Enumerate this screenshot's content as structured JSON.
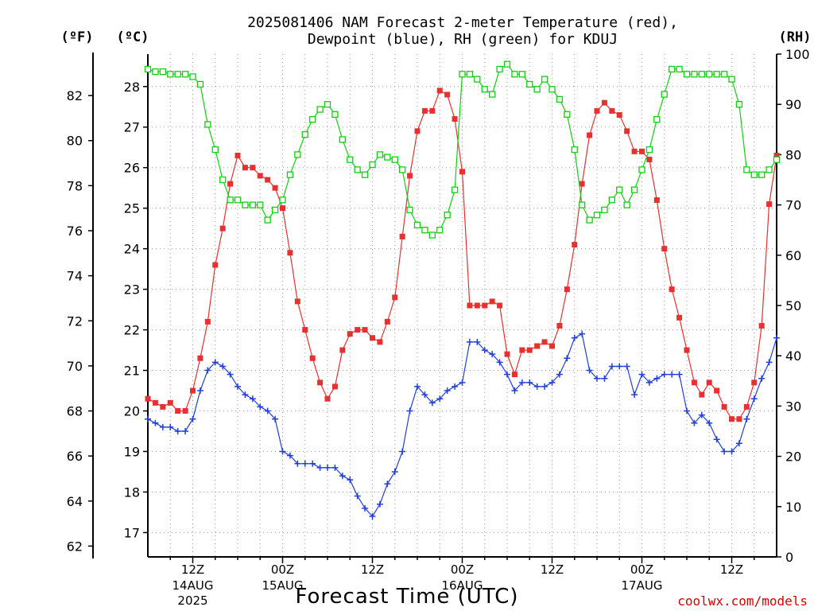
{
  "chart_data": {
    "type": "line",
    "title": "2025081406 NAM Forecast 2-meter Temperature (red),\nDewpoint (blue), RH (green) for KDUJ",
    "xlabel": "Forecast Time (UTC)",
    "left_outer_unit": "(ºF)",
    "left_inner_unit": "(ºC)",
    "right_unit": "(RH)",
    "credit": "coolwx.com/models",
    "grid": true,
    "x_ticks": [
      {
        "x": 12,
        "label": "12Z",
        "sub": "14AUG",
        "sub2": "2025"
      },
      {
        "x": 24,
        "label": "00Z",
        "sub": "15AUG",
        "sub2": ""
      },
      {
        "x": 36,
        "label": "12Z",
        "sub": "",
        "sub2": ""
      },
      {
        "x": 48,
        "label": "00Z",
        "sub": "16AUG",
        "sub2": ""
      },
      {
        "x": 60,
        "label": "12Z",
        "sub": "",
        "sub2": ""
      },
      {
        "x": 72,
        "label": "00Z",
        "sub": "17AUG",
        "sub2": ""
      },
      {
        "x": 84,
        "label": "12Z",
        "sub": "",
        "sub2": ""
      }
    ],
    "x_range": [
      6,
      90
    ],
    "celsius_ylim": [
      16.4,
      28.8
    ],
    "fahrenheit_ticks": [
      62,
      64,
      66,
      68,
      70,
      72,
      74,
      76,
      78,
      80,
      82
    ],
    "celsius_ticks": [
      17,
      18,
      19,
      20,
      21,
      22,
      23,
      24,
      25,
      26,
      27,
      28
    ],
    "rh_ylim": [
      0,
      100
    ],
    "rh_ticks": [
      0,
      10,
      20,
      30,
      40,
      50,
      60,
      70,
      80,
      90,
      100
    ],
    "series": [
      {
        "name": "Temperature",
        "color": "#e83030",
        "marker": "square",
        "axis": "celsius",
        "x": [
          6,
          7,
          8,
          9,
          10,
          11,
          12,
          13,
          14,
          15,
          16,
          17,
          18,
          19,
          20,
          21,
          22,
          23,
          24,
          25,
          26,
          27,
          28,
          29,
          30,
          31,
          32,
          33,
          34,
          35,
          36,
          37,
          38,
          39,
          40,
          41,
          42,
          43,
          44,
          45,
          46,
          47,
          48,
          49,
          50,
          51,
          52,
          53,
          54,
          55,
          56,
          57,
          58,
          59,
          60,
          61,
          62,
          63,
          64,
          65,
          66,
          67,
          68,
          69,
          70,
          71,
          72,
          73,
          74,
          75,
          76,
          77,
          78,
          79,
          80,
          81,
          82,
          83,
          84,
          85,
          86,
          87,
          88,
          89,
          90
        ],
        "y": [
          20.3,
          20.2,
          20.1,
          20.2,
          20.0,
          20.0,
          20.5,
          21.3,
          22.2,
          23.6,
          24.5,
          25.6,
          26.3,
          26.0,
          26.0,
          25.8,
          25.7,
          25.5,
          25.0,
          23.9,
          22.7,
          22.0,
          21.3,
          20.7,
          20.3,
          20.6,
          21.5,
          21.9,
          22.0,
          22.0,
          21.8,
          21.7,
          22.2,
          22.8,
          24.3,
          25.8,
          26.9,
          27.4,
          27.4,
          27.9,
          27.8,
          27.2,
          25.9,
          22.6,
          22.6,
          22.6,
          22.7,
          22.6,
          21.4,
          20.9,
          21.5,
          21.5,
          21.6,
          21.7,
          21.6,
          22.1,
          23.0,
          24.1,
          25.6,
          26.8,
          27.4,
          27.6,
          27.4,
          27.3,
          26.9,
          26.4,
          26.4,
          26.2,
          25.2,
          24.0,
          23.0,
          22.3,
          21.5,
          20.7,
          20.4,
          20.7,
          20.5,
          20.1,
          19.8,
          19.8,
          20.1,
          20.7,
          22.1,
          25.1,
          26.3
        ]
      },
      {
        "name": "Dewpoint",
        "color": "#2040d8",
        "marker": "plus",
        "axis": "celsius",
        "x": [
          6,
          7,
          8,
          9,
          10,
          11,
          12,
          13,
          14,
          15,
          16,
          17,
          18,
          19,
          20,
          21,
          22,
          23,
          24,
          25,
          26,
          27,
          28,
          29,
          30,
          31,
          32,
          33,
          34,
          35,
          36,
          37,
          38,
          39,
          40,
          41,
          42,
          43,
          44,
          45,
          46,
          47,
          48,
          49,
          50,
          51,
          52,
          53,
          54,
          55,
          56,
          57,
          58,
          59,
          60,
          61,
          62,
          63,
          64,
          65,
          66,
          67,
          68,
          69,
          70,
          71,
          72,
          73,
          74,
          75,
          76,
          77,
          78,
          79,
          80,
          81,
          82,
          83,
          84,
          85,
          86,
          87,
          88,
          89,
          90
        ],
        "y": [
          19.8,
          19.7,
          19.6,
          19.6,
          19.5,
          19.5,
          19.8,
          20.5,
          21.0,
          21.2,
          21.1,
          20.9,
          20.6,
          20.4,
          20.3,
          20.1,
          20.0,
          19.8,
          19.0,
          18.9,
          18.7,
          18.7,
          18.7,
          18.6,
          18.6,
          18.6,
          18.4,
          18.3,
          17.9,
          17.6,
          17.4,
          17.7,
          18.2,
          18.5,
          19.0,
          20.0,
          20.6,
          20.4,
          20.2,
          20.3,
          20.5,
          20.6,
          20.7,
          21.7,
          21.7,
          21.5,
          21.4,
          21.2,
          20.9,
          20.5,
          20.7,
          20.7,
          20.6,
          20.6,
          20.7,
          20.9,
          21.3,
          21.8,
          21.9,
          21.0,
          20.8,
          20.8,
          21.1,
          21.1,
          21.1,
          20.4,
          20.9,
          20.7,
          20.8,
          20.9,
          20.9,
          20.9,
          20.0,
          19.7,
          19.9,
          19.7,
          19.3,
          19.0,
          19.0,
          19.2,
          19.8,
          20.3,
          20.8,
          21.2,
          21.8
        ]
      },
      {
        "name": "RH",
        "color": "#10d010",
        "marker": "open-square",
        "axis": "rh",
        "x": [
          6,
          7,
          8,
          9,
          10,
          11,
          12,
          13,
          14,
          15,
          16,
          17,
          18,
          19,
          20,
          21,
          22,
          23,
          24,
          25,
          26,
          27,
          28,
          29,
          30,
          31,
          32,
          33,
          34,
          35,
          36,
          37,
          38,
          39,
          40,
          41,
          42,
          43,
          44,
          45,
          46,
          47,
          48,
          49,
          50,
          51,
          52,
          53,
          54,
          55,
          56,
          57,
          58,
          59,
          60,
          61,
          62,
          63,
          64,
          65,
          66,
          67,
          68,
          69,
          70,
          71,
          72,
          73,
          74,
          75,
          76,
          77,
          78,
          79,
          80,
          81,
          82,
          83,
          84,
          85,
          86,
          87,
          88,
          89,
          90
        ],
        "y": [
          97,
          96.5,
          96.5,
          96,
          96,
          96,
          95.5,
          94,
          86,
          81,
          75,
          71,
          71,
          70,
          70,
          70,
          67,
          69,
          71,
          76,
          80,
          84,
          87,
          89,
          90,
          88,
          83,
          79,
          77,
          76,
          78,
          80,
          79.5,
          79,
          77,
          69,
          66,
          65,
          64,
          65,
          68,
          73,
          96,
          96,
          95,
          93,
          92,
          97,
          98,
          96,
          96,
          94,
          93,
          95,
          93,
          91,
          88,
          81,
          70,
          67,
          68,
          69,
          71,
          73,
          70,
          73,
          77,
          81,
          87,
          92,
          97,
          97,
          96,
          96,
          96,
          96,
          96,
          96,
          95,
          90,
          77,
          76,
          76,
          77,
          79
        ]
      }
    ]
  }
}
